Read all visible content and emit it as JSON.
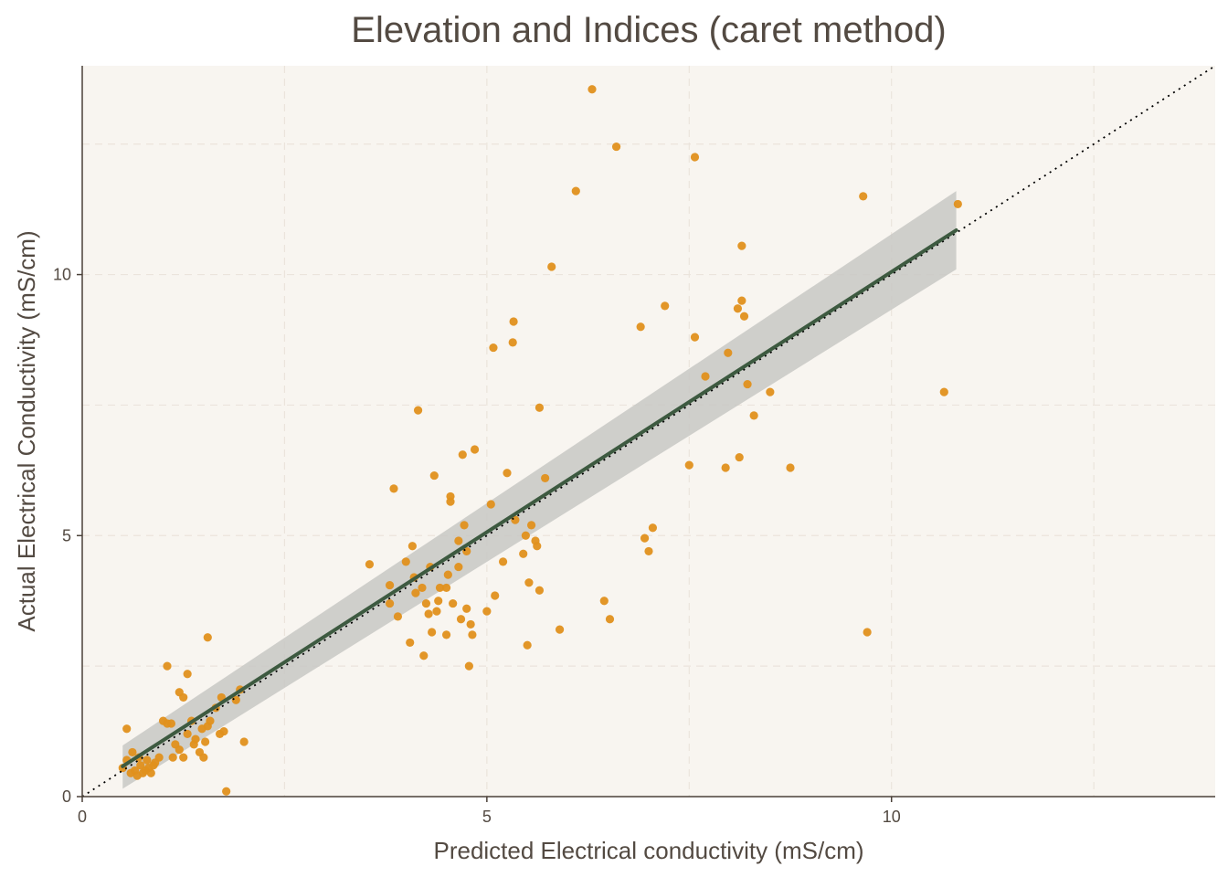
{
  "chart_data": {
    "type": "scatter",
    "title": "Elevation and Indices (caret method)",
    "xlabel": "Predicted Electrical conductivity (mS/cm)",
    "ylabel": "Actual Electrical Conductivity (mS/cm)",
    "xlim": [
      0,
      14
    ],
    "ylim": [
      0,
      14
    ],
    "x_ticks": [
      0,
      5,
      10
    ],
    "y_ticks": [
      0,
      5,
      10
    ],
    "x_minor_grid": [
      2.5,
      7.5,
      12.5
    ],
    "y_minor_grid": [
      2.5,
      7.5,
      12.5
    ],
    "grid": true,
    "legend": "none",
    "colors": {
      "points": "#e0901c",
      "fit_line": "#3d5a40",
      "confidence_band": "#c8c8c4",
      "panel_background": "#f8f5f0",
      "identity_line": "#000000",
      "text": "#534a42"
    },
    "reference_line": {
      "type": "identity",
      "style": "dotted",
      "x": [
        0,
        14
      ],
      "y": [
        0,
        14
      ]
    },
    "fit": {
      "method": "linear",
      "x": [
        0.5,
        10.8
      ],
      "y": [
        0.58,
        10.85
      ],
      "band_lower": [
        0.15,
        10.1
      ],
      "band_upper": [
        0.98,
        11.6
      ]
    },
    "points": [
      {
        "x": 0.55,
        "y": 1.3
      },
      {
        "x": 0.5,
        "y": 0.55
      },
      {
        "x": 0.55,
        "y": 0.7
      },
      {
        "x": 0.6,
        "y": 0.45
      },
      {
        "x": 0.62,
        "y": 0.85
      },
      {
        "x": 0.65,
        "y": 0.5
      },
      {
        "x": 0.68,
        "y": 0.4
      },
      {
        "x": 0.7,
        "y": 0.75
      },
      {
        "x": 0.72,
        "y": 0.6
      },
      {
        "x": 0.75,
        "y": 0.45
      },
      {
        "x": 0.78,
        "y": 0.5
      },
      {
        "x": 0.8,
        "y": 0.7
      },
      {
        "x": 0.82,
        "y": 0.55
      },
      {
        "x": 0.85,
        "y": 0.45
      },
      {
        "x": 0.88,
        "y": 0.6
      },
      {
        "x": 0.9,
        "y": 0.65
      },
      {
        "x": 0.95,
        "y": 0.75
      },
      {
        "x": 1.0,
        "y": 1.45
      },
      {
        "x": 1.05,
        "y": 1.4
      },
      {
        "x": 1.05,
        "y": 2.5
      },
      {
        "x": 1.1,
        "y": 1.4
      },
      {
        "x": 1.12,
        "y": 0.75
      },
      {
        "x": 1.15,
        "y": 1.0
      },
      {
        "x": 1.2,
        "y": 0.9
      },
      {
        "x": 1.2,
        "y": 2.0
      },
      {
        "x": 1.25,
        "y": 1.9
      },
      {
        "x": 1.25,
        "y": 0.75
      },
      {
        "x": 1.3,
        "y": 1.2
      },
      {
        "x": 1.3,
        "y": 2.35
      },
      {
        "x": 1.35,
        "y": 1.45
      },
      {
        "x": 1.38,
        "y": 1.0
      },
      {
        "x": 1.4,
        "y": 1.1
      },
      {
        "x": 1.45,
        "y": 0.85
      },
      {
        "x": 1.48,
        "y": 1.3
      },
      {
        "x": 1.5,
        "y": 0.75
      },
      {
        "x": 1.52,
        "y": 1.05
      },
      {
        "x": 1.55,
        "y": 1.35
      },
      {
        "x": 1.55,
        "y": 3.05
      },
      {
        "x": 1.58,
        "y": 1.45
      },
      {
        "x": 1.65,
        "y": 1.7
      },
      {
        "x": 1.7,
        "y": 1.2
      },
      {
        "x": 1.72,
        "y": 1.9
      },
      {
        "x": 1.75,
        "y": 1.25
      },
      {
        "x": 1.78,
        "y": 0.1
      },
      {
        "x": 1.9,
        "y": 1.85
      },
      {
        "x": 1.95,
        "y": 2.05
      },
      {
        "x": 2.0,
        "y": 1.05
      },
      {
        "x": 3.55,
        "y": 4.45
      },
      {
        "x": 3.8,
        "y": 3.7
      },
      {
        "x": 3.8,
        "y": 4.05
      },
      {
        "x": 3.85,
        "y": 5.9
      },
      {
        "x": 3.9,
        "y": 3.45
      },
      {
        "x": 4.0,
        "y": 4.5
      },
      {
        "x": 4.05,
        "y": 2.95
      },
      {
        "x": 4.08,
        "y": 4.8
      },
      {
        "x": 4.1,
        "y": 4.2
      },
      {
        "x": 4.12,
        "y": 3.9
      },
      {
        "x": 4.15,
        "y": 7.4
      },
      {
        "x": 4.2,
        "y": 4.0
      },
      {
        "x": 4.22,
        "y": 2.7
      },
      {
        "x": 4.25,
        "y": 3.7
      },
      {
        "x": 4.28,
        "y": 3.5
      },
      {
        "x": 4.3,
        "y": 4.4
      },
      {
        "x": 4.32,
        "y": 3.15
      },
      {
        "x": 4.35,
        "y": 6.15
      },
      {
        "x": 4.38,
        "y": 3.55
      },
      {
        "x": 4.4,
        "y": 3.75
      },
      {
        "x": 4.42,
        "y": 4.0
      },
      {
        "x": 4.5,
        "y": 3.1
      },
      {
        "x": 4.5,
        "y": 4.0
      },
      {
        "x": 4.52,
        "y": 4.25
      },
      {
        "x": 4.55,
        "y": 5.75
      },
      {
        "x": 4.55,
        "y": 5.65
      },
      {
        "x": 4.58,
        "y": 3.7
      },
      {
        "x": 4.65,
        "y": 4.9
      },
      {
        "x": 4.68,
        "y": 3.4
      },
      {
        "x": 4.7,
        "y": 6.55
      },
      {
        "x": 4.72,
        "y": 5.2
      },
      {
        "x": 4.75,
        "y": 3.6
      },
      {
        "x": 4.78,
        "y": 2.5
      },
      {
        "x": 4.8,
        "y": 3.3
      },
      {
        "x": 4.82,
        "y": 3.1
      },
      {
        "x": 4.85,
        "y": 6.65
      },
      {
        "x": 4.65,
        "y": 4.4
      },
      {
        "x": 4.75,
        "y": 4.7
      },
      {
        "x": 5.0,
        "y": 3.55
      },
      {
        "x": 5.05,
        "y": 5.6
      },
      {
        "x": 5.08,
        "y": 8.6
      },
      {
        "x": 5.1,
        "y": 3.85
      },
      {
        "x": 5.2,
        "y": 4.5
      },
      {
        "x": 5.25,
        "y": 6.2
      },
      {
        "x": 5.32,
        "y": 8.7
      },
      {
        "x": 5.33,
        "y": 9.1
      },
      {
        "x": 5.35,
        "y": 5.3
      },
      {
        "x": 5.45,
        "y": 4.65
      },
      {
        "x": 5.48,
        "y": 5.0
      },
      {
        "x": 5.5,
        "y": 2.9
      },
      {
        "x": 5.52,
        "y": 4.1
      },
      {
        "x": 5.55,
        "y": 5.2
      },
      {
        "x": 5.6,
        "y": 4.9
      },
      {
        "x": 5.62,
        "y": 4.8
      },
      {
        "x": 5.65,
        "y": 3.95
      },
      {
        "x": 5.65,
        "y": 7.45
      },
      {
        "x": 5.72,
        "y": 6.1
      },
      {
        "x": 5.8,
        "y": 10.15
      },
      {
        "x": 5.9,
        "y": 3.2
      },
      {
        "x": 6.1,
        "y": 11.6
      },
      {
        "x": 6.3,
        "y": 13.55
      },
      {
        "x": 6.45,
        "y": 3.75
      },
      {
        "x": 6.52,
        "y": 3.4
      },
      {
        "x": 6.6,
        "y": 12.45
      },
      {
        "x": 6.9,
        "y": 9.0
      },
      {
        "x": 6.95,
        "y": 4.95
      },
      {
        "x": 7.0,
        "y": 4.7
      },
      {
        "x": 7.05,
        "y": 5.15
      },
      {
        "x": 7.2,
        "y": 9.4
      },
      {
        "x": 7.5,
        "y": 6.35
      },
      {
        "x": 7.57,
        "y": 8.8
      },
      {
        "x": 7.57,
        "y": 12.25
      },
      {
        "x": 7.7,
        "y": 8.05
      },
      {
        "x": 7.95,
        "y": 6.3
      },
      {
        "x": 7.98,
        "y": 8.5
      },
      {
        "x": 8.1,
        "y": 9.35
      },
      {
        "x": 8.12,
        "y": 6.5
      },
      {
        "x": 8.15,
        "y": 10.55
      },
      {
        "x": 8.15,
        "y": 9.5
      },
      {
        "x": 8.18,
        "y": 9.2
      },
      {
        "x": 8.22,
        "y": 7.9
      },
      {
        "x": 8.3,
        "y": 7.3
      },
      {
        "x": 8.5,
        "y": 7.75
      },
      {
        "x": 8.75,
        "y": 6.3
      },
      {
        "x": 9.65,
        "y": 11.5
      },
      {
        "x": 9.7,
        "y": 3.15
      },
      {
        "x": 10.65,
        "y": 7.75
      },
      {
        "x": 10.82,
        "y": 11.35
      }
    ]
  }
}
